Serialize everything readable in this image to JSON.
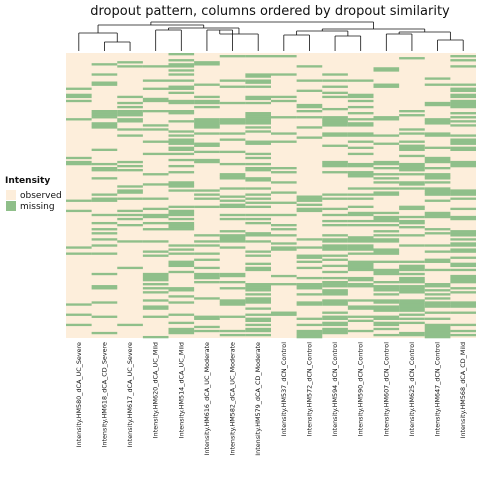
{
  "chart_data": {
    "type": "heatmap",
    "title": "dropout pattern, columns ordered by dropout similarity",
    "legend": {
      "title": "Intensity",
      "entries": [
        {
          "label": "observed",
          "color": "#fdeedb"
        },
        {
          "label": "missing",
          "color": "#8fbf8a"
        }
      ]
    },
    "colors": {
      "observed": "#fdeedb",
      "missing": "#8fbf8a",
      "dendrogram": "#111111"
    },
    "columns": [
      "Intensity.HM580_dCA_UC_Severe",
      "Intensity.HM618_dCA_CD_Severe",
      "Intensity.HM617_dCA_UC_Severe",
      "Intensity.HM620_dCA_UC_Mild",
      "Intensity.HM514_dCA_UC_Mild",
      "Intensity.HM616_dCA_UC_Moderate",
      "Intensity.HM582_dCA_UC_Moderate",
      "Intensity.HM579_dCA_CD_Moderate",
      "Intensity.HM537_dCN_Control",
      "Intensity.HM572_dCN_Control",
      "Intensity.HM594_dCN_Control",
      "Intensity.HM590_dCN_Control",
      "Intensity.HM607_dCN_Control",
      "Intensity.HM625_dCN_Control",
      "Intensity.HM647_dCN_Control",
      "Intensity.HM568_dCA_CD_Mild"
    ],
    "n_rows": 140,
    "column_missing_fraction": [
      0.13,
      0.2,
      0.2,
      0.3,
      0.34,
      0.31,
      0.3,
      0.35,
      0.16,
      0.27,
      0.33,
      0.36,
      0.39,
      0.38,
      0.37,
      0.42
    ],
    "column_missing_bias": [
      -0.5,
      -2.6,
      -2.2,
      0.9,
      -0.4,
      0.3,
      0.6,
      -0.2,
      1.6,
      1.2,
      1.5,
      1.4,
      1.7,
      1.6,
      1.3,
      0.4
    ],
    "dendrogram_groups": [
      [
        "0",
        "1",
        "2"
      ],
      [
        "3",
        "4",
        "5",
        "6",
        "7"
      ],
      [
        "8",
        "9",
        "10",
        "11",
        "12",
        "13",
        "14",
        "15"
      ]
    ]
  }
}
